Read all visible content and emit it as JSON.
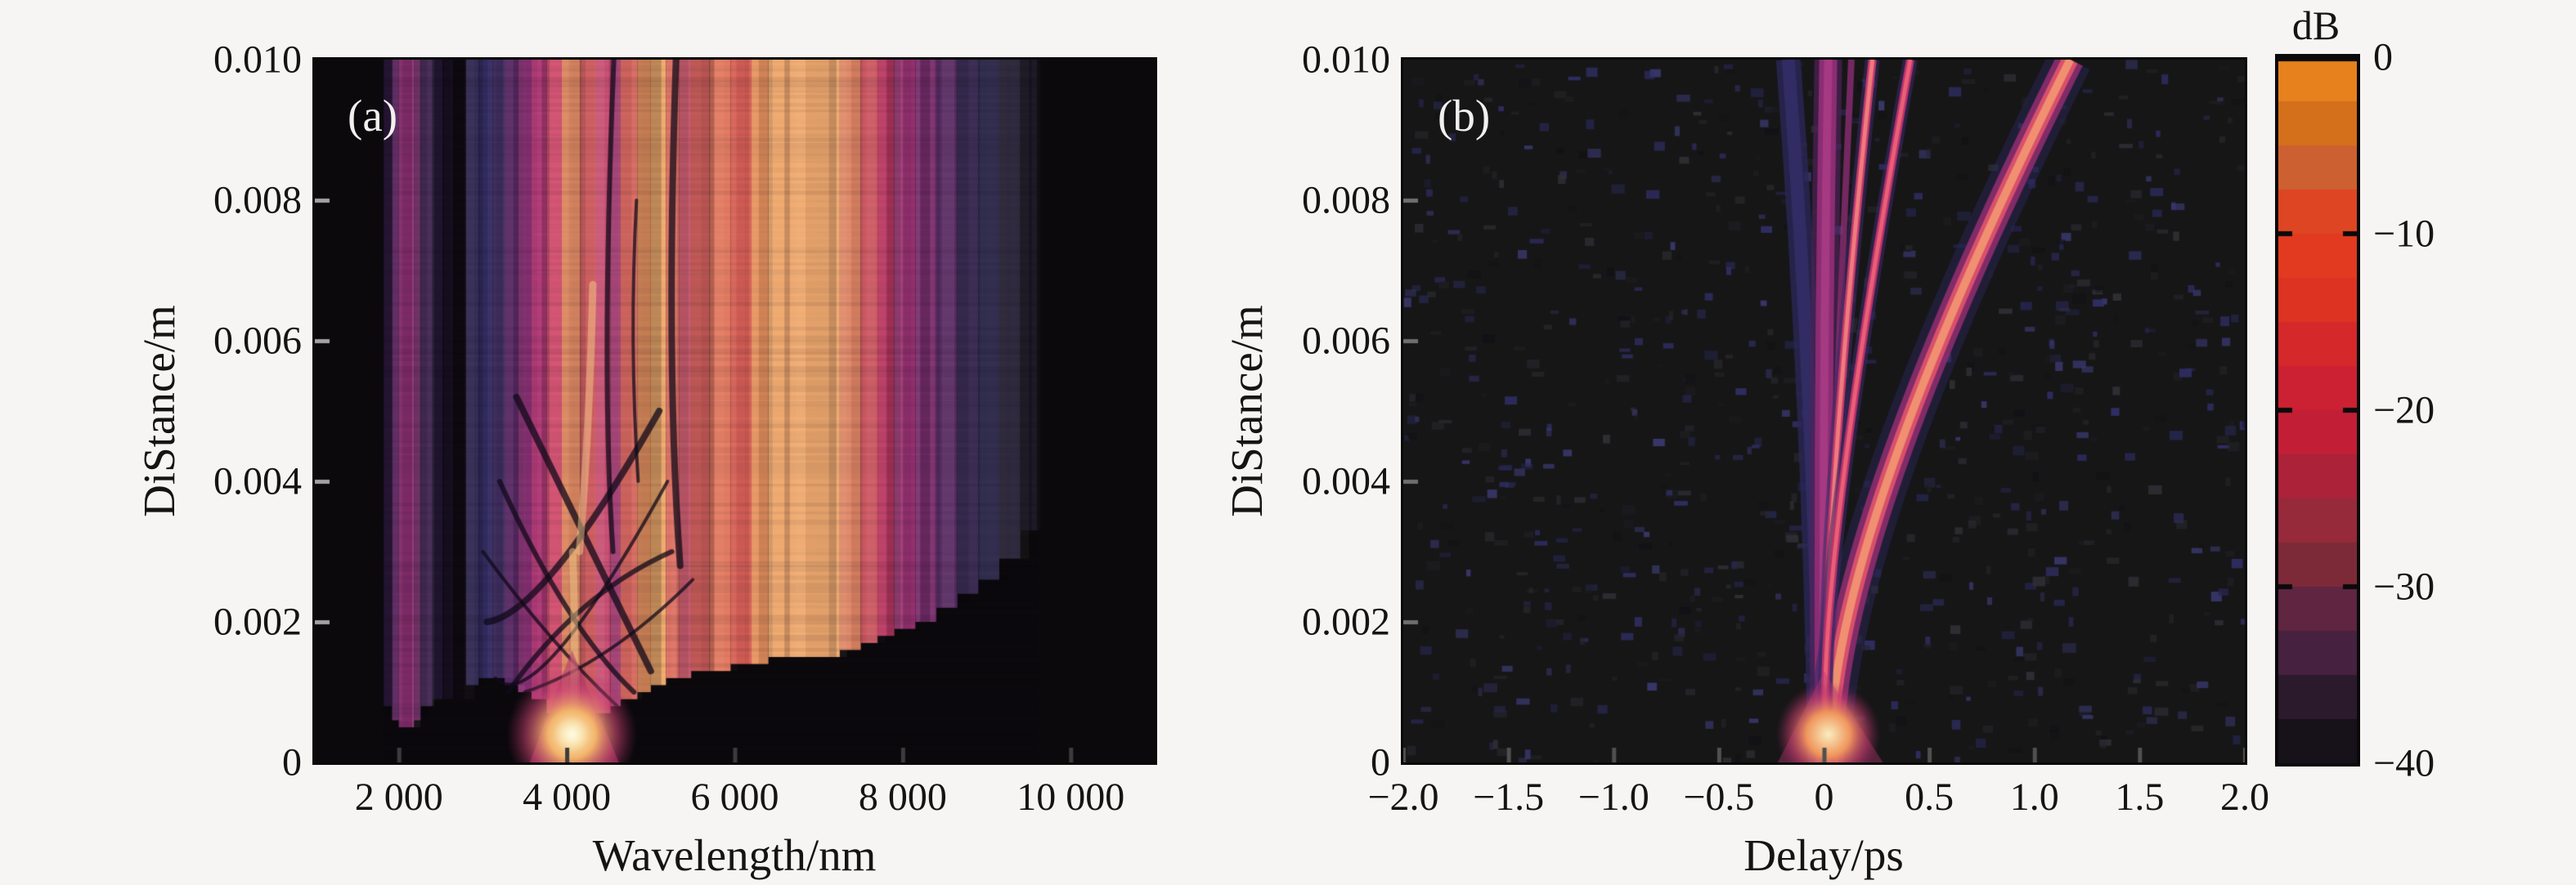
{
  "figure": {
    "background": "#f6f5f3",
    "text_color": "#141414"
  },
  "chart_data": [
    {
      "panel": "a",
      "type": "heatmap",
      "label": "(a)",
      "xlabel": "Wavelength/nm",
      "ylabel": "DiStance/m",
      "x_range": [
        1000,
        11000
      ],
      "y_range": [
        0,
        0.01
      ],
      "x_ticks": [
        {
          "value": 2000,
          "label": "2 000"
        },
        {
          "value": 4000,
          "label": "4 000"
        },
        {
          "value": 6000,
          "label": "6 000"
        },
        {
          "value": 8000,
          "label": "8 000"
        },
        {
          "value": 10000,
          "label": "10 000"
        }
      ],
      "y_ticks": [
        {
          "value": 0.01,
          "label": "0.010"
        },
        {
          "value": 0.008,
          "label": "0.008"
        },
        {
          "value": 0.006,
          "label": "0.006"
        },
        {
          "value": 0.004,
          "label": "0.004"
        },
        {
          "value": 0.002,
          "label": "0.002"
        },
        {
          "value": 0,
          "label": "0"
        }
      ],
      "seed_pulse": {
        "wavelength": 4060,
        "distance": 0.0004
      },
      "bands": [
        {
          "wl": [
            1820,
            1920
          ],
          "color": "#2a1838",
          "z0": 0.0008
        },
        {
          "wl": [
            1920,
            2000
          ],
          "color": "#5a2460",
          "z0": 0.0006
        },
        {
          "wl": [
            2000,
            2180
          ],
          "color": "#943278",
          "z0": 0.0005
        },
        {
          "wl": [
            2180,
            2260
          ],
          "color": "#6e2a66",
          "z0": 0.0006
        },
        {
          "wl": [
            2260,
            2400
          ],
          "color": "#3c2150",
          "z0": 0.0008
        },
        {
          "wl": [
            2400,
            2520
          ],
          "color": "#241834",
          "z0": 0.0009
        },
        {
          "wl": [
            2520,
            2650
          ],
          "color": "#181020",
          "z0": 0.0009
        },
        {
          "wl": [
            2650,
            2800
          ],
          "color": "#0f0b12",
          "z0": 0.0009
        },
        {
          "wl": [
            2800,
            2950
          ],
          "color": "#2c2550",
          "z0": 0.0011
        },
        {
          "wl": [
            2950,
            3120
          ],
          "color": "#363066",
          "z0": 0.0012
        },
        {
          "wl": [
            3120,
            3260
          ],
          "color": "#433064",
          "z0": 0.0012
        },
        {
          "wl": [
            3260,
            3420
          ],
          "color": "#5e2d6c",
          "z0": 0.0011
        },
        {
          "wl": [
            3420,
            3580
          ],
          "color": "#8c3278",
          "z0": 0.001
        },
        {
          "wl": [
            3580,
            3760
          ],
          "color": "#b23a78",
          "z0": 0.0009
        },
        {
          "wl": [
            3760,
            3940
          ],
          "color": "#d24e70",
          "z0": 0.0007
        },
        {
          "wl": [
            3940,
            4160
          ],
          "color": "#e88f66",
          "z0": 0.0003
        },
        {
          "wl": [
            4160,
            4340
          ],
          "color": "#db6668",
          "z0": 0.0005
        },
        {
          "wl": [
            4340,
            4520
          ],
          "color": "#c74770",
          "z0": 0.0007
        },
        {
          "wl": [
            4520,
            4640
          ],
          "color": "#a63a74",
          "z0": 0.0008
        },
        {
          "wl": [
            4640,
            4840
          ],
          "color": "#d96a62",
          "z0": 0.0009
        },
        {
          "wl": [
            4840,
            5000
          ],
          "color": "#e8935f",
          "z0": 0.001
        },
        {
          "wl": [
            5000,
            5180
          ],
          "color": "#f0ac6c",
          "z0": 0.0011
        },
        {
          "wl": [
            5180,
            5340
          ],
          "color": "#de6f62",
          "z0": 0.0012
        },
        {
          "wl": [
            5340,
            5480
          ],
          "color": "#c44f66",
          "z0": 0.0012
        },
        {
          "wl": [
            5480,
            5700
          ],
          "color": "#d96460",
          "z0": 0.0013
        },
        {
          "wl": [
            5700,
            5950
          ],
          "color": "#e2785f",
          "z0": 0.0013
        },
        {
          "wl": [
            5950,
            6200
          ],
          "color": "#d96058",
          "z0": 0.0014
        },
        {
          "wl": [
            6200,
            6400
          ],
          "color": "#e8935f",
          "z0": 0.0014
        },
        {
          "wl": [
            6400,
            7250
          ],
          "color": "#f0aa70",
          "z0": 0.0015
        },
        {
          "wl": [
            7250,
            7500
          ],
          "color": "#e08766",
          "z0": 0.0016
        },
        {
          "wl": [
            7500,
            7700
          ],
          "color": "#cc5560",
          "z0": 0.0017
        },
        {
          "wl": [
            7700,
            7900
          ],
          "color": "#bb3a64",
          "z0": 0.0018
        },
        {
          "wl": [
            7900,
            8150
          ],
          "color": "#9c3374",
          "z0": 0.0019
        },
        {
          "wl": [
            8150,
            8400
          ],
          "color": "#7c3170",
          "z0": 0.002
        },
        {
          "wl": [
            8400,
            8650
          ],
          "color": "#5c3068",
          "z0": 0.0022
        },
        {
          "wl": [
            8650,
            8900
          ],
          "color": "#443460",
          "z0": 0.0024
        },
        {
          "wl": [
            8900,
            9150
          ],
          "color": "#363254",
          "z0": 0.0026
        },
        {
          "wl": [
            9150,
            9400
          ],
          "color": "#262238",
          "z0": 0.0029
        },
        {
          "wl": [
            9400,
            9600
          ],
          "color": "#181522",
          "z0": 0.0033
        }
      ],
      "dark_arcs": [
        {
          "p0": [
            3150,
            0.0012
          ],
          "p1": [
            3900,
            0.0016
          ],
          "p2": [
            5200,
            0.004
          ]
        },
        {
          "p0": [
            3300,
            0.001
          ],
          "p1": [
            4200,
            0.0022
          ],
          "p2": [
            5250,
            0.003
          ]
        },
        {
          "p0": [
            3050,
            0.002
          ],
          "p1": [
            3900,
            0.0028
          ],
          "p2": [
            5100,
            0.005
          ]
        },
        {
          "p0": [
            3500,
            0.001
          ],
          "p1": [
            4500,
            0.0016
          ],
          "p2": [
            5500,
            0.0026
          ]
        },
        {
          "p0": [
            4800,
            0.001
          ],
          "p1": [
            4000,
            0.0022
          ],
          "p2": [
            3200,
            0.004
          ]
        },
        {
          "p0": [
            5000,
            0.0013
          ],
          "p1": [
            4300,
            0.003
          ],
          "p2": [
            3400,
            0.0052
          ]
        },
        {
          "p0": [
            4600,
            0.0008
          ],
          "p1": [
            3800,
            0.0018
          ],
          "p2": [
            3000,
            0.003
          ]
        },
        {
          "p0": [
            4550,
            0.003
          ],
          "p1": [
            4480,
            0.006
          ],
          "p2": [
            4560,
            0.01
          ]
        },
        {
          "p0": [
            5350,
            0.0028
          ],
          "p1": [
            5250,
            0.006
          ],
          "p2": [
            5300,
            0.01
          ]
        },
        {
          "p0": [
            4850,
            0.004
          ],
          "p1": [
            4790,
            0.006
          ],
          "p2": [
            4830,
            0.008
          ]
        }
      ],
      "bright_streaks": [
        {
          "p0": [
            4050,
            0.0004
          ],
          "p1": [
            4090,
            0.0015
          ],
          "p2": [
            4070,
            0.003
          ]
        },
        {
          "p0": [
            4150,
            0.003
          ],
          "p1": [
            4250,
            0.0048
          ],
          "p2": [
            4310,
            0.0068
          ]
        }
      ]
    },
    {
      "panel": "b",
      "type": "heatmap",
      "label": "(b)",
      "xlabel": "Delay/ps",
      "ylabel": "DiStance/m",
      "x_range": [
        -2,
        2
      ],
      "y_range": [
        0,
        0.01
      ],
      "x_ticks": [
        {
          "value": -2.0,
          "label": "−2.0"
        },
        {
          "value": -1.5,
          "label": "−1.5"
        },
        {
          "value": -1.0,
          "label": "−1.0"
        },
        {
          "value": -0.5,
          "label": "−0.5"
        },
        {
          "value": 0,
          "label": "0"
        },
        {
          "value": 0.5,
          "label": "0.5"
        },
        {
          "value": 1.0,
          "label": "1.0"
        },
        {
          "value": 1.5,
          "label": "1.5"
        },
        {
          "value": 2.0,
          "label": "2.0"
        }
      ],
      "y_ticks": [
        {
          "value": 0.01,
          "label": "0.010"
        },
        {
          "value": 0.008,
          "label": "0.008"
        },
        {
          "value": 0.006,
          "label": "0.006"
        },
        {
          "value": 0.004,
          "label": "0.004"
        },
        {
          "value": 0.002,
          "label": "0.002"
        },
        {
          "value": 0,
          "label": "0"
        }
      ],
      "seed_pulse": {
        "delay": 0.02,
        "distance": 0.0004
      },
      "traces": [
        {
          "name": "band-navy",
          "p": [
            [
              -0.02,
              0
            ],
            [
              -0.07,
              0.005
            ],
            [
              -0.17,
              0.01
            ]
          ],
          "layers": [
            {
              "w": 30,
              "c": "#2b2758",
              "a": 0.8
            },
            {
              "w": 16,
              "c": "#332e66",
              "a": 0.9
            }
          ]
        },
        {
          "name": "band-magenta",
          "p": [
            [
              0,
              0
            ],
            [
              0.0,
              0.005
            ],
            [
              0.02,
              0.01
            ]
          ],
          "layers": [
            {
              "w": 34,
              "c": "#4e2258",
              "a": 0.7
            },
            {
              "w": 22,
              "c": "#8c2d74",
              "a": 1
            },
            {
              "w": 10,
              "c": "#a53a82",
              "a": 1
            }
          ]
        },
        {
          "name": "soliton-wide",
          "p": [
            [
              0.03,
              0
            ],
            [
              0.3,
              0.004
            ],
            [
              1.17,
              0.01
            ]
          ],
          "layers": [
            {
              "w": 54,
              "c": "#2c2760",
              "a": 0.45
            },
            {
              "w": 34,
              "c": "#8c2c6e",
              "a": 0.9
            },
            {
              "w": 20,
              "c": "#d8506c",
              "a": 1
            },
            {
              "w": 10,
              "c": "#f09070",
              "a": 1
            }
          ]
        },
        {
          "name": "splinter",
          "p": [
            [
              0.01,
              0
            ],
            [
              0.06,
              0.005
            ],
            [
              0.13,
              0.01
            ]
          ],
          "layers": [
            {
              "w": 8,
              "c": "#8c2d74",
              "a": 0.8
            }
          ]
        },
        {
          "name": "soliton-1",
          "p": [
            [
              0.01,
              0
            ],
            [
              0.05,
              0.004
            ],
            [
              0.23,
              0.01
            ]
          ],
          "layers": [
            {
              "w": 18,
              "c": "#3a2a64",
              "a": 0.6
            },
            {
              "w": 10,
              "c": "#c23a6e",
              "a": 1
            },
            {
              "w": 5,
              "c": "#f07b7c",
              "a": 1
            }
          ]
        },
        {
          "name": "soliton-2",
          "p": [
            [
              0.02,
              0
            ],
            [
              0.07,
              0.0035
            ],
            [
              0.41,
              0.01
            ]
          ],
          "layers": [
            {
              "w": 18,
              "c": "#3a2a64",
              "a": 0.6
            },
            {
              "w": 10,
              "c": "#b8336c",
              "a": 1
            },
            {
              "w": 5,
              "c": "#ea5f76",
              "a": 1
            }
          ]
        }
      ],
      "noise": {
        "count": 820,
        "seed": 7,
        "colors": [
          "#26262b",
          "#303036",
          "#1e1e22",
          "#26264e",
          "#32306a",
          "#3c3a72",
          "#121216"
        ]
      }
    }
  ],
  "colorbar": {
    "label": "dB",
    "range_db": [
      -40,
      0
    ],
    "ticks": [
      {
        "value": 0,
        "label": "0"
      },
      {
        "value": -10,
        "label": "−10"
      },
      {
        "value": -20,
        "label": "−20"
      },
      {
        "value": -30,
        "label": "−30"
      },
      {
        "value": -40,
        "label": "−40"
      }
    ],
    "steps": [
      "#e6811e",
      "#d4701b",
      "#cd6030",
      "#de4523",
      "#e23a20",
      "#dd3322",
      "#d5282a",
      "#cb2133",
      "#c21f36",
      "#ab2239",
      "#962a3a",
      "#7d2a38",
      "#5f2541",
      "#462140",
      "#2b1a2b",
      "#17111a"
    ]
  }
}
